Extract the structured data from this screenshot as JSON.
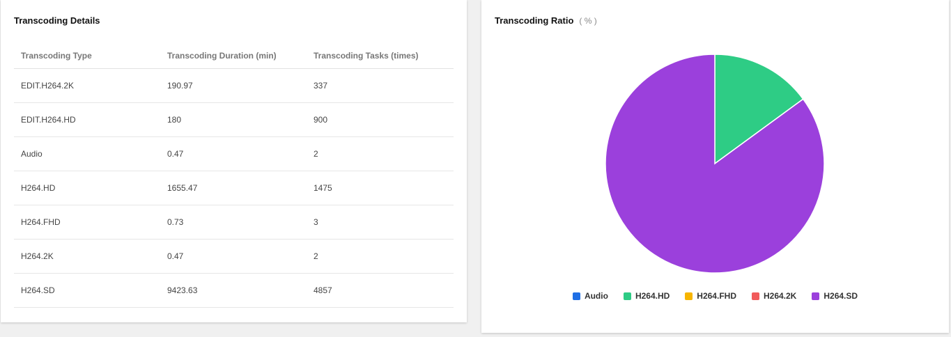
{
  "details": {
    "title": "Transcoding Details",
    "columns": [
      "Transcoding Type",
      "Transcoding Duration (min)",
      "Transcoding Tasks (times)"
    ],
    "rows": [
      [
        "EDIT.H264.2K",
        "190.97",
        "337"
      ],
      [
        "EDIT.H264.HD",
        "180",
        "900"
      ],
      [
        "Audio",
        "0.47",
        "2"
      ],
      [
        "H264.HD",
        "1655.47",
        "1475"
      ],
      [
        "H264.FHD",
        "0.73",
        "3"
      ],
      [
        "H264.2K",
        "0.47",
        "2"
      ],
      [
        "H264.SD",
        "9423.63",
        "4857"
      ]
    ]
  },
  "ratio": {
    "title": "Transcoding Ratio",
    "unit": "( % )"
  },
  "chart_data": {
    "type": "pie",
    "title": "Transcoding Ratio",
    "categories": [
      "Audio",
      "H264.HD",
      "H264.FHD",
      "H264.2K",
      "H264.SD"
    ],
    "values": [
      0.47,
      1655.47,
      0.73,
      0.47,
      9423.63
    ],
    "colors": [
      "#1f6fe5",
      "#2ecc85",
      "#f7b500",
      "#f15b5b",
      "#9b40dc"
    ],
    "legend_position": "bottom"
  }
}
